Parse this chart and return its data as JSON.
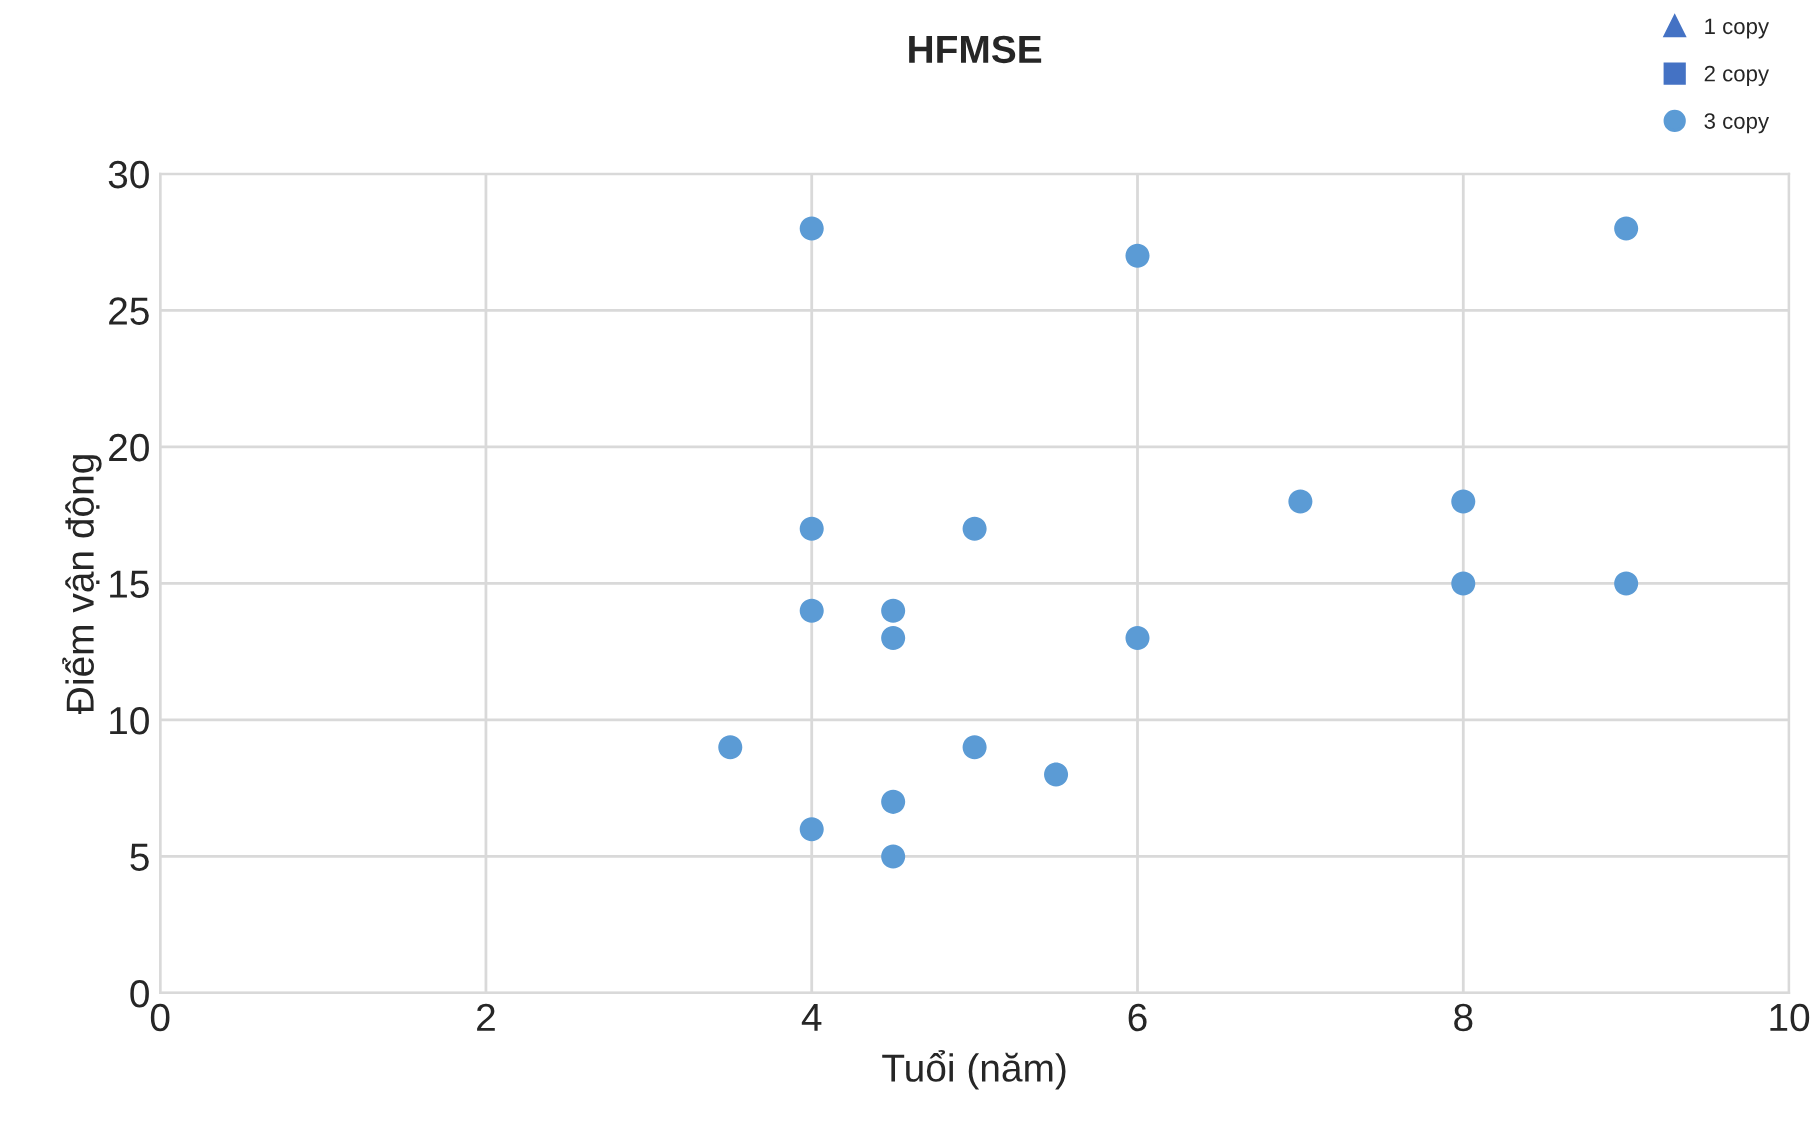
{
  "chart_data": {
    "type": "scatter",
    "title": "HFMSE",
    "xlabel": "Tuổi (năm)",
    "ylabel": "Điểm vận động",
    "xlim": [
      0,
      10
    ],
    "xticks": [
      0,
      2,
      4,
      6,
      8,
      10
    ],
    "ylim": [
      0,
      30
    ],
    "yticks": [
      0,
      5,
      10,
      15,
      20,
      25,
      30
    ],
    "grid": true,
    "legend": "top right",
    "series": [
      {
        "name": "1 copy",
        "color": "#4472c4",
        "marker": "triangle"
      },
      {
        "name": "2 copy",
        "color": "#4472c4",
        "marker": "square"
      },
      {
        "name": "3 copy",
        "color": "#5b9bd5",
        "marker": "circle",
        "x": [
          3.5,
          4,
          4,
          4,
          4,
          4.5,
          4.5,
          4.5,
          4.5,
          5,
          5,
          5.5,
          6,
          6,
          7,
          8,
          8,
          9,
          9
        ],
        "values": [
          9,
          28,
          17,
          14,
          6,
          14,
          13,
          7,
          5,
          17,
          9,
          8,
          27,
          13,
          18,
          18,
          15,
          28,
          15
        ]
      }
    ]
  }
}
